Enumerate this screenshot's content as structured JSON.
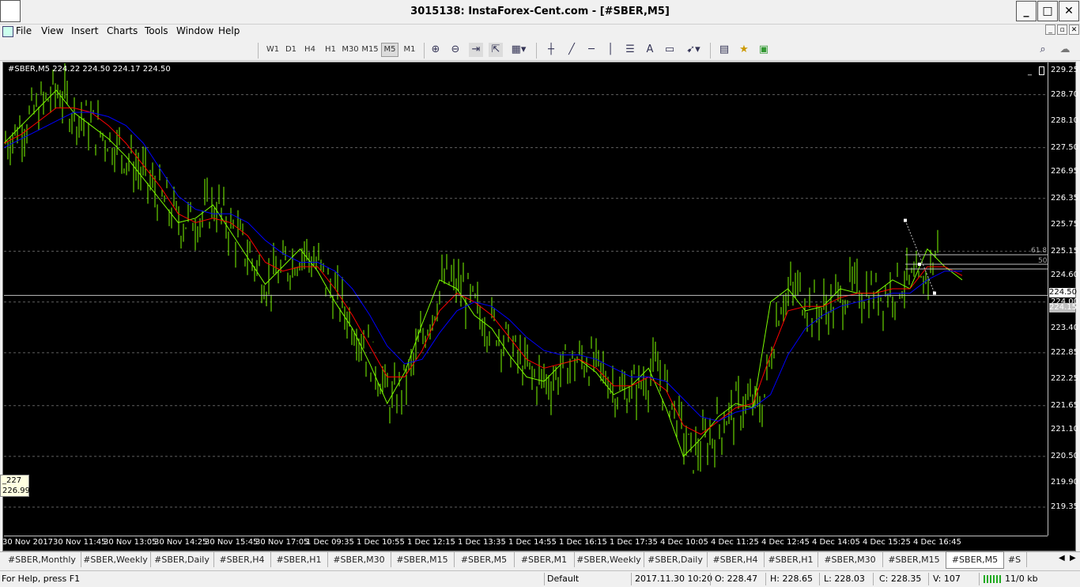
{
  "window": {
    "title": "3015138: InstaForex-Cent.com - [#SBER,M5]"
  },
  "menu": [
    "File",
    "View",
    "Insert",
    "Charts",
    "Tools",
    "Window",
    "Help"
  ],
  "timeframes": [
    "W1",
    "D1",
    "H4",
    "H1",
    "M30",
    "M15",
    "M5",
    "M1"
  ],
  "active_timeframe": "M5",
  "chart": {
    "symbol_info": "#SBER,M5  224.22 224.50 224.17 224.50",
    "tooltip": {
      "line1": "_227",
      "line2": "226.99"
    },
    "current_price": "224.50",
    "level_price": "224.15",
    "fibo": {
      "l618": "61.8",
      "l50": "50"
    }
  },
  "chart_data": {
    "type": "line",
    "price_ticks": [
      "229.25",
      "228.70",
      "228.10",
      "227.50",
      "226.95",
      "226.35",
      "225.75",
      "225.15",
      "224.60",
      "224.00",
      "223.40",
      "222.85",
      "222.25",
      "221.65",
      "221.10",
      "220.50",
      "219.90",
      "219.35"
    ],
    "time_ticks": [
      "30 Nov 2017",
      "30 Nov 11:45",
      "30 Nov 13:05",
      "30 Nov 14:25",
      "30 Nov 15:45",
      "30 Nov 17:05",
      "1 Dec 09:35",
      "1 Dec 10:55",
      "1 Dec 12:15",
      "1 Dec 13:35",
      "1 Dec 14:55",
      "1 Dec 16:15",
      "1 Dec 17:35",
      "4 Dec 10:05",
      "4 Dec 11:25",
      "4 Dec 12:45",
      "4 Dec 14:05",
      "4 Dec 15:25",
      "4 Dec 16:45"
    ],
    "ylim": [
      219.35,
      229.25
    ],
    "series": [
      {
        "color": "#7CFC00",
        "values": [
          227.6,
          228.0,
          228.4,
          228.8,
          228.3,
          228.0,
          227.7,
          227.3,
          226.8,
          226.3,
          225.8,
          225.9,
          226.2,
          225.6,
          225.0,
          224.4,
          224.8,
          225.2,
          224.7,
          224.0,
          223.4,
          222.6,
          221.7,
          222.4,
          223.5,
          224.5,
          224.3,
          223.7,
          223.4,
          222.8,
          222.3,
          222.2,
          222.6,
          222.7,
          222.4,
          221.9,
          222.1,
          222.5,
          221.6,
          220.5,
          220.9,
          221.4,
          221.7,
          221.6,
          224.0,
          224.3,
          223.8,
          223.9,
          224.3,
          224.2,
          224.2,
          224.5,
          224.3,
          225.2,
          224.8,
          224.5
        ]
      },
      {
        "color": "#FF0000",
        "values": [
          227.6,
          227.8,
          228.1,
          228.4,
          228.4,
          228.3,
          228.0,
          227.6,
          227.1,
          226.6,
          226.0,
          225.8,
          225.9,
          225.8,
          225.5,
          224.9,
          224.7,
          224.8,
          224.8,
          224.3,
          223.7,
          223.0,
          222.3,
          222.3,
          222.9,
          223.8,
          224.2,
          224.0,
          223.7,
          223.2,
          222.7,
          222.5,
          222.6,
          222.7,
          222.5,
          222.1,
          222.1,
          222.3,
          222.0,
          221.2,
          221.0,
          221.3,
          221.6,
          221.7,
          222.8,
          223.8,
          223.9,
          223.9,
          224.1,
          224.2,
          224.2,
          224.3,
          224.3,
          224.8,
          224.8,
          224.6
        ]
      },
      {
        "color": "#0000FF",
        "values": [
          227.5,
          227.7,
          227.9,
          228.1,
          228.3,
          228.3,
          228.2,
          228.0,
          227.6,
          227.0,
          226.4,
          226.1,
          226.0,
          226.0,
          225.8,
          225.4,
          225.1,
          224.9,
          224.9,
          224.7,
          224.3,
          223.7,
          223.0,
          222.6,
          222.7,
          223.3,
          223.8,
          224.0,
          223.9,
          223.6,
          223.2,
          222.9,
          222.8,
          222.8,
          222.7,
          222.5,
          222.3,
          222.3,
          222.2,
          221.8,
          221.4,
          221.3,
          221.5,
          221.6,
          221.9,
          222.8,
          223.4,
          223.7,
          223.9,
          224.0,
          224.1,
          224.2,
          224.2,
          224.5,
          224.7,
          224.7
        ]
      }
    ]
  },
  "tabs": [
    "#SBER,Monthly",
    "#SBER,Weekly",
    "#SBER,Daily",
    "#SBER,H4",
    "#SBER,H1",
    "#SBER,M30",
    "#SBER,M15",
    "#SBER,M5",
    "#SBER,M1",
    "#SBER,Weekly",
    "#SBER,Daily",
    "#SBER,H4",
    "#SBER,H1",
    "#SBER,M30",
    "#SBER,M15",
    "#SBER,M5",
    "#S"
  ],
  "active_tab_index": 15,
  "status": {
    "help": "For Help, press F1",
    "profile": "Default",
    "datetime": "2017.11.30 10:20",
    "open": "O: 228.47",
    "high": "H: 228.65",
    "low": "L: 228.03",
    "close": "C: 228.35",
    "volume": "V: 107",
    "traffic": "11/0 kb"
  },
  "colors": {
    "chart_bg": "#000000",
    "bars": "#7CFC00",
    "ma_fast": "#7CFC00",
    "ma_mid": "#FF0000",
    "ma_slow": "#0000FF"
  },
  "icons": [
    "zoom-in-icon",
    "zoom-out-icon",
    "chart-shift-icon",
    "autoscroll-icon",
    "templates-icon",
    "crosshair-icon",
    "trendline-icon",
    "hline-icon",
    "vline-icon",
    "fibo-icon",
    "text-icon",
    "label-icon",
    "arrows-icon",
    "navigator-icon",
    "favorites-icon",
    "strategy-icon",
    "search-icon",
    "chat-icon"
  ]
}
